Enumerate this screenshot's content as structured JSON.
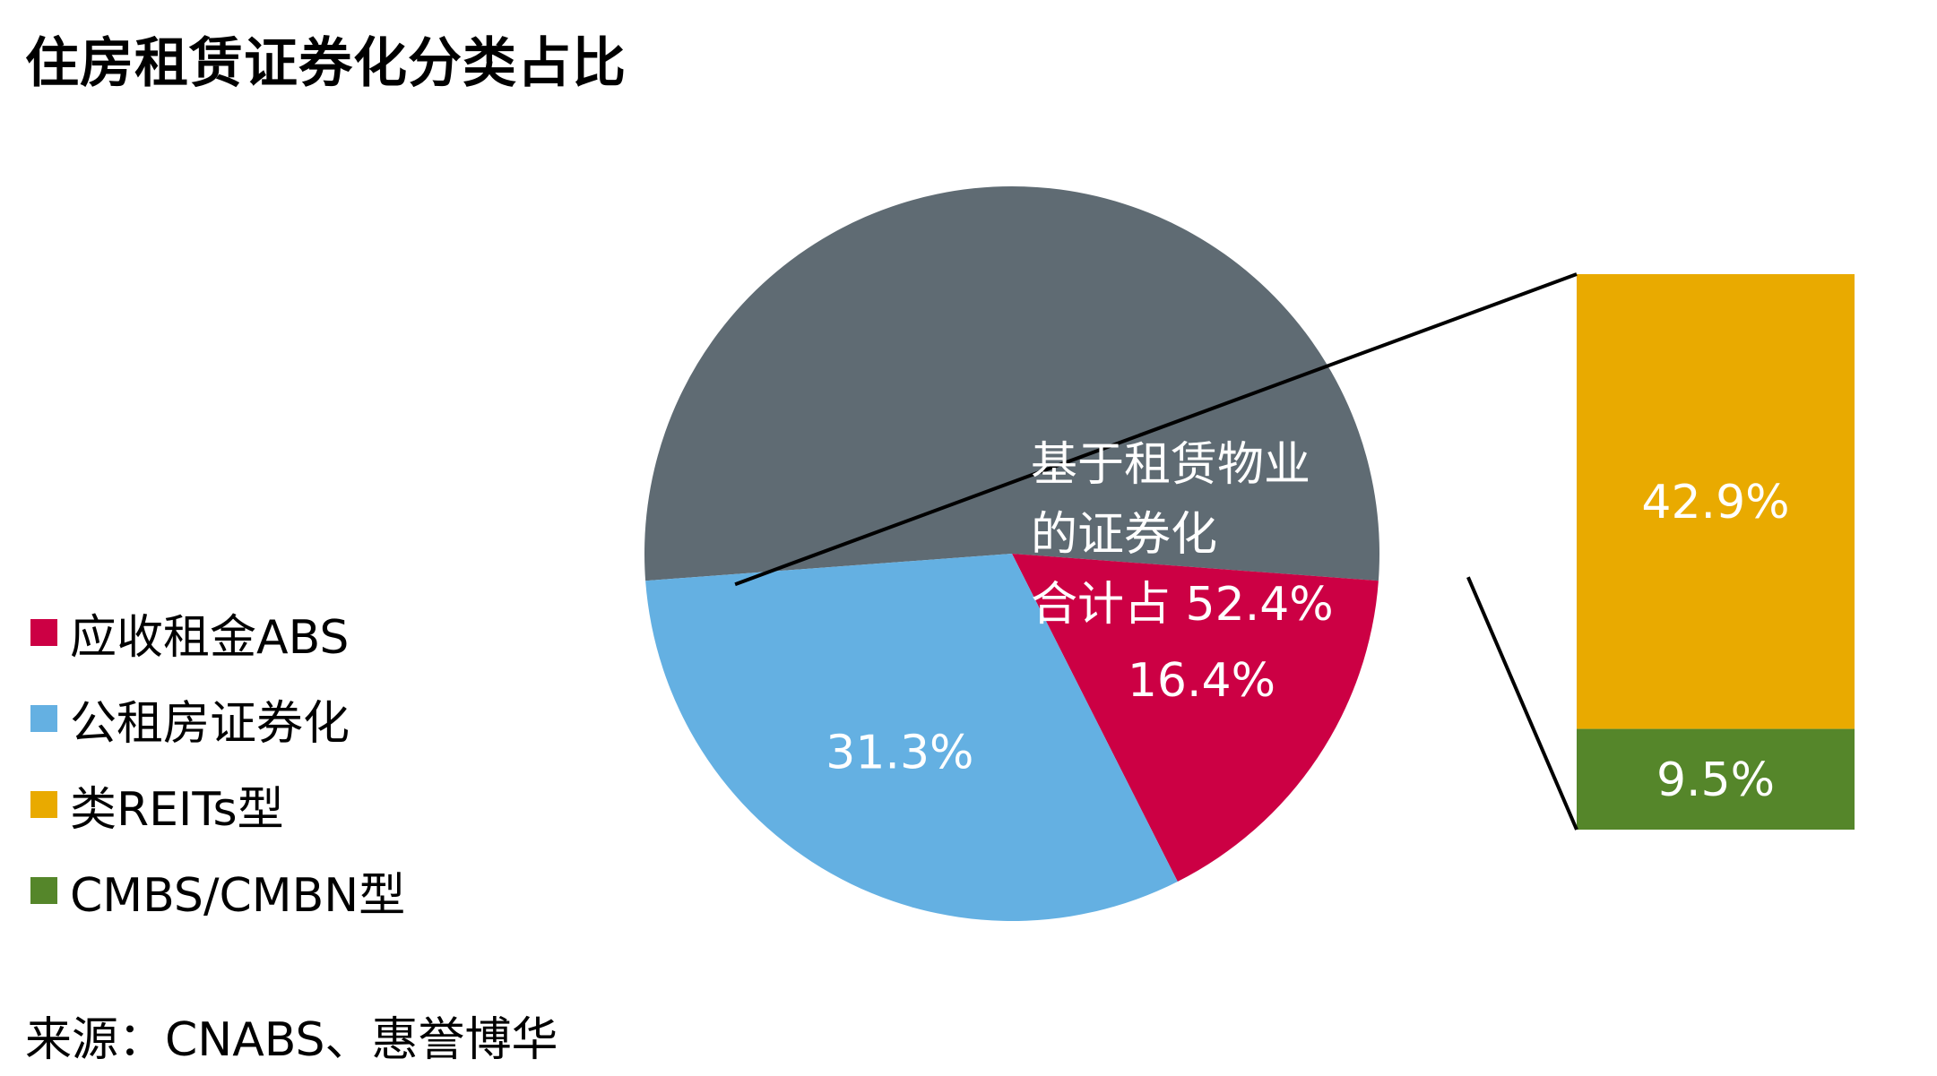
{
  "title": "住房租赁证券化分类占比",
  "source": "来源：CNABS、惠誉博华",
  "colors": {
    "receivable_abs": "#cc0044",
    "public_rental": "#64b0e2",
    "reits_like": "#e9aa00",
    "cmbs_cmbn": "#55862a",
    "combined": "#5f6b73"
  },
  "chart_data": {
    "type": "pie",
    "title": "住房租赁证券化分类占比",
    "pie": {
      "slices": [
        {
          "key": "combined",
          "name": "基于租赁物业的证券化",
          "value": 52.4,
          "label": "",
          "color": "#5f6b73"
        },
        {
          "key": "receivable_abs",
          "name": "应收租金ABS",
          "value": 16.4,
          "label": "16.4%",
          "color": "#cc0044"
        },
        {
          "key": "public_rental",
          "name": "公租房证券化",
          "value": 31.3,
          "label": "31.3%",
          "color": "#64b0e2"
        }
      ],
      "combined_label_lines": [
        "基于租赁物业",
        "的证券化",
        "合计占 52.4%"
      ]
    },
    "breakdown_bar": {
      "segments": [
        {
          "key": "reits_like",
          "name": "类REITs型",
          "value": 42.9,
          "label": "42.9%",
          "color": "#e9aa00"
        },
        {
          "key": "cmbs_cmbn",
          "name": "CMBS/CMBN型",
          "value": 9.5,
          "label": "9.5%",
          "color": "#55862a"
        }
      ]
    },
    "legend": {
      "placement": "left",
      "items": [
        {
          "key": "receivable_abs",
          "label": "应收租金ABS",
          "color": "#cc0044"
        },
        {
          "key": "public_rental",
          "label": "公租房证券化",
          "color": "#64b0e2"
        },
        {
          "key": "reits_like",
          "label": "类REITs型",
          "color": "#e9aa00"
        },
        {
          "key": "cmbs_cmbn",
          "label": "CMBS/CMBN型",
          "color": "#55862a"
        }
      ]
    }
  }
}
